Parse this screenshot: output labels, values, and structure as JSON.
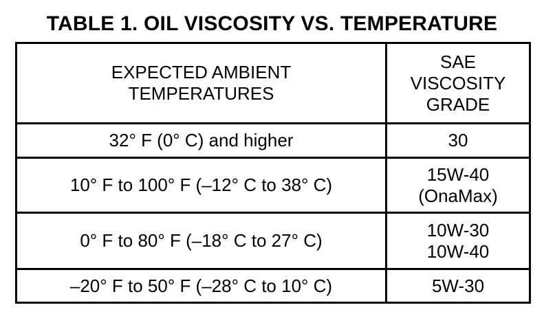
{
  "title": "TABLE 1. OIL VISCOSITY VS. TEMPERATURE",
  "table": {
    "header": {
      "col1_lines": [
        "EXPECTED AMBIENT",
        "TEMPERATURES"
      ],
      "col2_lines": [
        "SAE",
        "VISCOSITY",
        "GRADE"
      ]
    },
    "rows": [
      {
        "temperature": "32° F (0° C) and higher",
        "grade_lines": [
          "30"
        ]
      },
      {
        "temperature": "10° F to 100° F (–12° C to 38° C)",
        "grade_lines": [
          "15W-40",
          "(OnaMax)"
        ]
      },
      {
        "temperature": "0° F to 80° F (–18° C to 27° C)",
        "grade_lines": [
          "10W-30",
          "10W-40"
        ]
      },
      {
        "temperature": "–20° F to 50° F (–28° C to 10° C)",
        "grade_lines": [
          "5W-30"
        ]
      }
    ]
  }
}
